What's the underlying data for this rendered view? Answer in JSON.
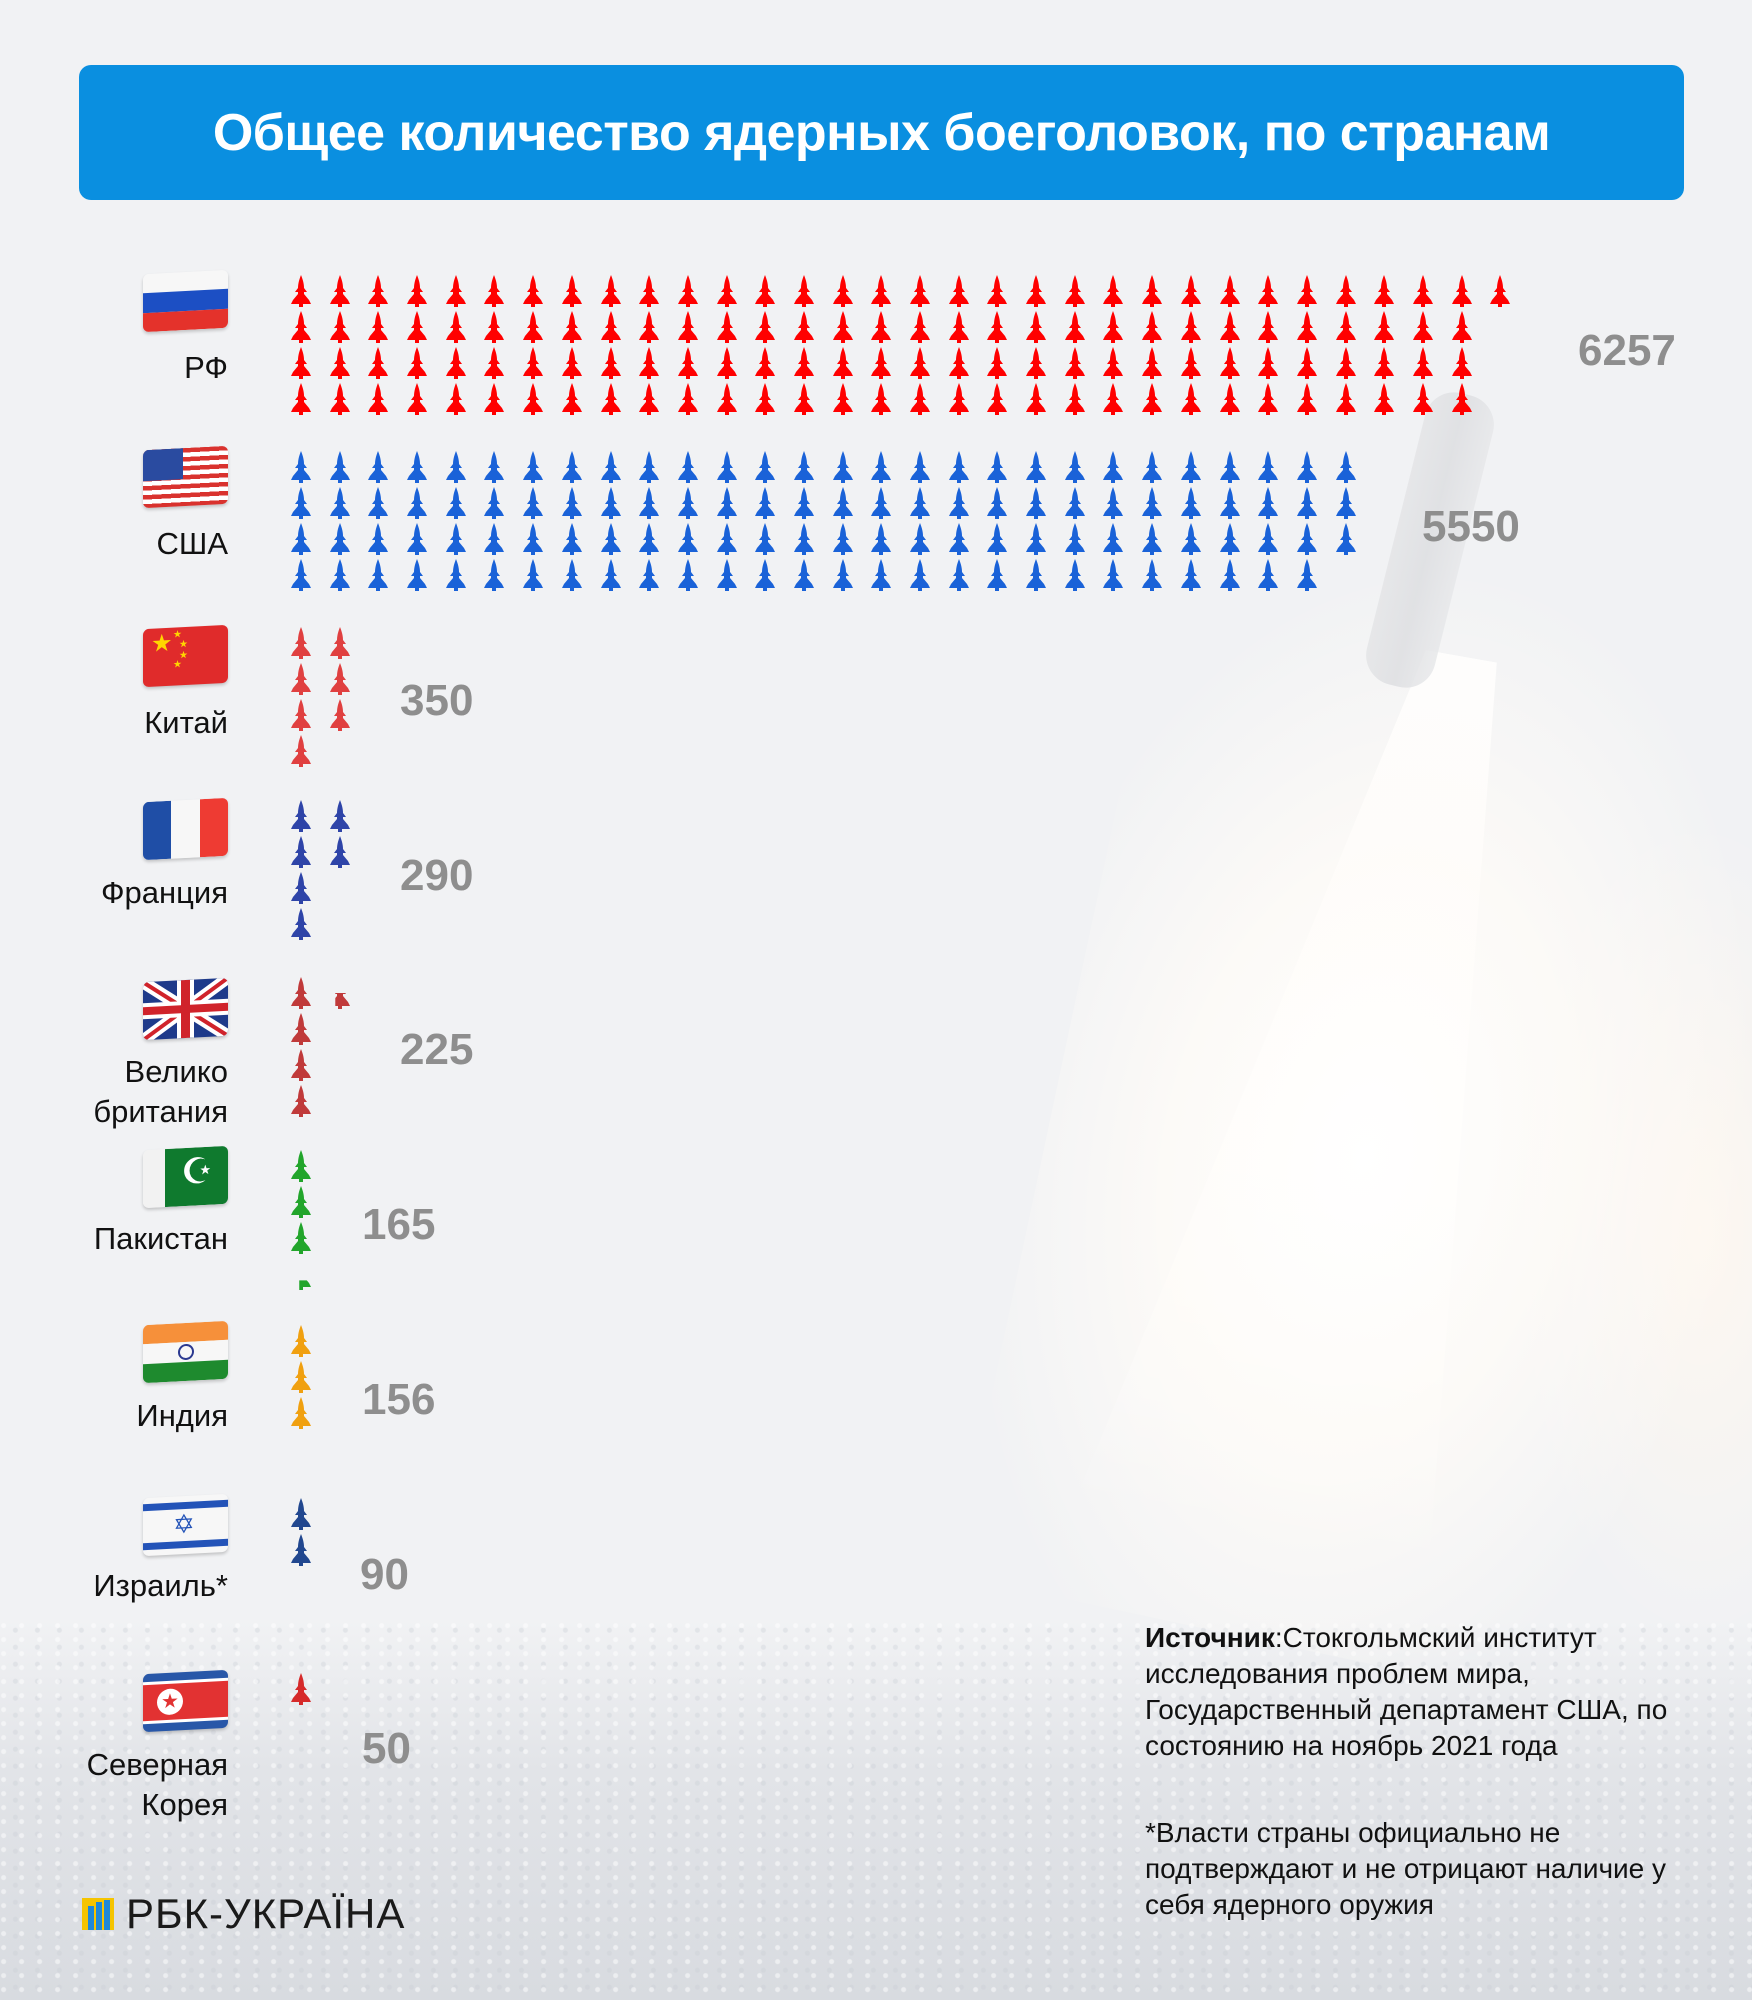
{
  "title": "Общее количество ядерных боеголовок, по странам",
  "chart_data": {
    "type": "pictogram-bar",
    "title": "Общее количество ядерных боеголовок, по странам",
    "unit": "warheads",
    "icon": "missile-icon",
    "categories": [
      "РФ",
      "США",
      "Китай",
      "Франция",
      "Великобритания",
      "Пакистан",
      "Индия",
      "Израиль*",
      "Северная Корея"
    ],
    "values": [
      6257,
      5550,
      350,
      290,
      225,
      165,
      156,
      90,
      50
    ],
    "colors": [
      "#ff0000",
      "#1a62d8",
      "#e04040",
      "#2e44a8",
      "#c03a3a",
      "#22a52b",
      "#f0a010",
      "#21478f",
      "#d62a2a"
    ],
    "icon_counts": [
      125,
      111,
      7,
      6,
      4.5,
      3.3,
      3,
      2,
      1
    ],
    "legend": "",
    "grid": false
  },
  "countries": [
    {
      "key": "ru",
      "label_lines": [
        "РФ"
      ],
      "value": "6257",
      "color": "#ff0000",
      "rows": [
        32,
        31,
        31,
        31
      ]
    },
    {
      "key": "us",
      "label_lines": [
        "США"
      ],
      "value": "5550",
      "color": "#1a62d8",
      "rows": [
        28,
        28,
        28,
        27
      ]
    },
    {
      "key": "cn",
      "label_lines": [
        "Китай"
      ],
      "value": "350",
      "color": "#e04040",
      "cols": [
        4,
        3
      ]
    },
    {
      "key": "fr",
      "label_lines": [
        "Франция"
      ],
      "value": "290",
      "color": "#2e44a8",
      "cols": [
        4,
        2
      ]
    },
    {
      "key": "gb",
      "label_lines": [
        "Велико",
        "британия"
      ],
      "value": "225",
      "color": "#c03a3a",
      "cols": [
        4,
        0.5
      ]
    },
    {
      "key": "pk",
      "label_lines": [
        "Пакистан"
      ],
      "value": "165",
      "color": "#22a52b",
      "cols": [
        3.3
      ]
    },
    {
      "key": "in",
      "label_lines": [
        "Индия"
      ],
      "value": "156",
      "color": "#f0a010",
      "cols": [
        3
      ]
    },
    {
      "key": "il",
      "label_lines": [
        "Израиль*"
      ],
      "value": "90",
      "color": "#21478f",
      "cols": [
        2
      ]
    },
    {
      "key": "kp",
      "label_lines": [
        "Северная",
        "Корея"
      ],
      "value": "50",
      "color": "#d62a2a",
      "cols": [
        1
      ]
    }
  ],
  "source": {
    "label": "Источник",
    "text": ":Стокгольмский институт исследования проблем мира, Государственный департамент США, по состоянию на ноябрь 2021 года"
  },
  "footnote": "*Власти страны официально не подтверждают и не отрицают наличие у себя ядерного оружия",
  "logo": {
    "text": "РБК-УКРАЇНА"
  }
}
